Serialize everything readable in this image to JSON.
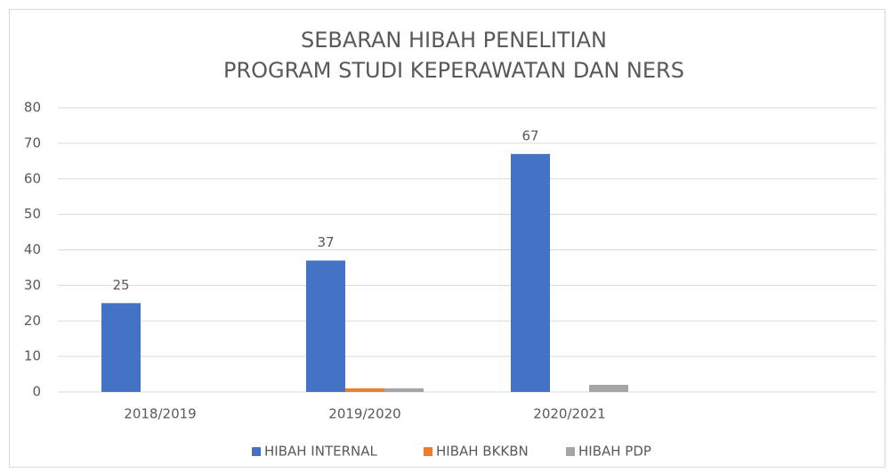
{
  "chart_data": {
    "type": "bar",
    "title": [
      "SEBARAN HIBAH PENELITIAN",
      "PROGRAM STUDI KEPERAWATAN DAN NERS"
    ],
    "categories": [
      "2018/2019",
      "2019/2020",
      "2020/2021",
      null
    ],
    "series": [
      {
        "name": "HIBAH INTERNAL",
        "color": "#4472c4",
        "values": [
          25,
          37,
          67,
          null
        ],
        "data_labels": true
      },
      {
        "name": "HIBAH BKKBN",
        "color": "#ed7d31",
        "values": [
          0,
          1,
          0,
          null
        ]
      },
      {
        "name": "HIBAH PDP",
        "color": "#a5a5a5",
        "values": [
          0,
          1,
          2,
          null
        ]
      }
    ],
    "ylim": [
      0,
      80
    ],
    "yticks": [
      0,
      10,
      20,
      30,
      40,
      50,
      60,
      70,
      80
    ],
    "grid": true,
    "legend": "bottom"
  }
}
